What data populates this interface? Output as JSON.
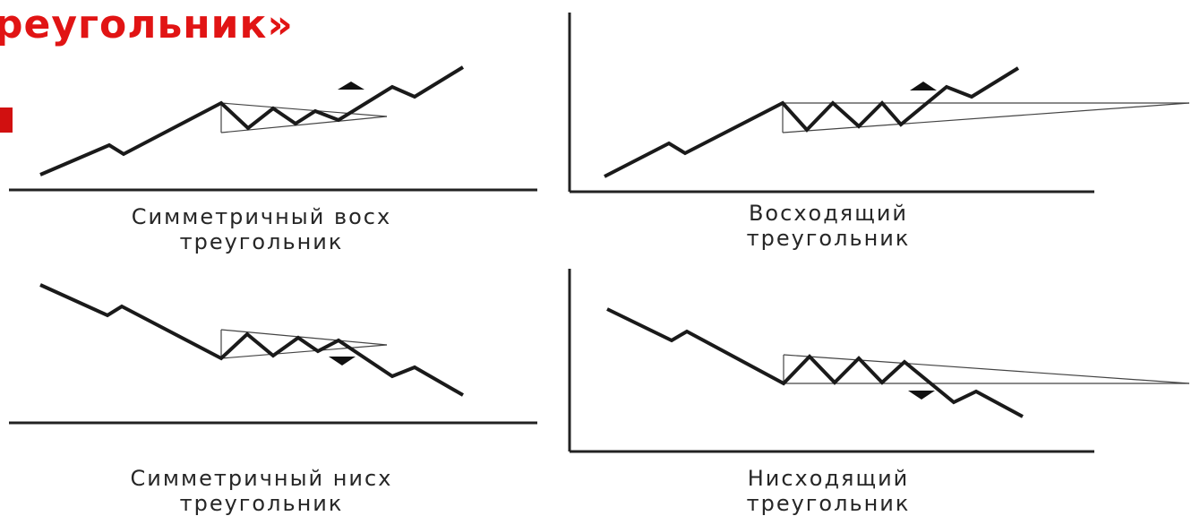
{
  "slide": {
    "title": "реугольник»"
  },
  "panels": [
    {
      "id": "sym-up",
      "caption_line1": "Симметричный восх",
      "caption_line2": "треугольник"
    },
    {
      "id": "ascending",
      "caption_line1": "Восходящий",
      "caption_line2": "треугольник"
    },
    {
      "id": "sym-down",
      "caption_line1": "Симметричный нисх",
      "caption_line2": "треугольник"
    },
    {
      "id": "descending",
      "caption_line1": "Нисходящий",
      "caption_line2": "треугольник"
    }
  ],
  "colors": {
    "title": "#e11414",
    "line": "#1a1a1a",
    "axis": "#222222"
  }
}
